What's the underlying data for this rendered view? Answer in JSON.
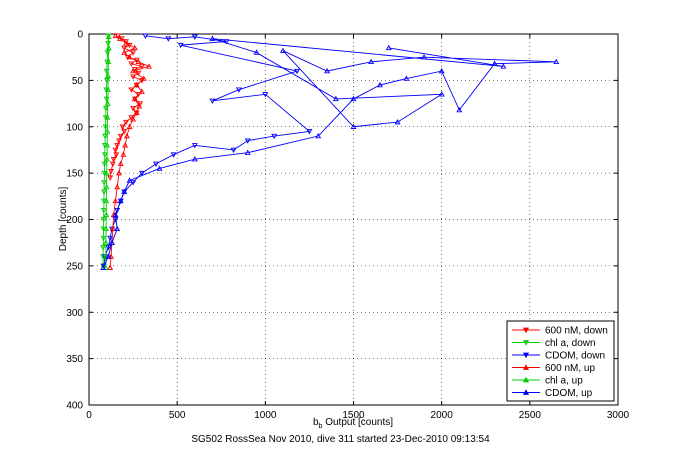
{
  "chart_data": {
    "type": "scatter",
    "caption": "SG502 RossSea Nov 2010, dive 311 started 23-Dec-2010 09:13:54",
    "xlabel_main": "b",
    "xlabel_sub": "b",
    "xlabel_rest": " Output [counts]",
    "ylabel": "Depth [counts]",
    "xlim": [
      0,
      3000
    ],
    "ylim": [
      0,
      400
    ],
    "y_reversed": true,
    "grid": true,
    "legend_position": "bottom-right",
    "xticks": [
      "0",
      "500",
      "1000",
      "1500",
      "2000",
      "2500",
      "3000"
    ],
    "yticks": [
      "0",
      "50",
      "100",
      "150",
      "200",
      "250",
      "300",
      "350",
      "400"
    ],
    "series": [
      {
        "name": "600 nM, down",
        "color": "#ff0000",
        "marker": "triangle-down",
        "points": [
          [
            165,
            2
          ],
          [
            185,
            5
          ],
          [
            210,
            8
          ],
          [
            230,
            12
          ],
          [
            200,
            15
          ],
          [
            250,
            20
          ],
          [
            220,
            25
          ],
          [
            270,
            28
          ],
          [
            240,
            32
          ],
          [
            300,
            35
          ],
          [
            260,
            38
          ],
          [
            280,
            42
          ],
          [
            250,
            46
          ],
          [
            300,
            50
          ],
          [
            270,
            55
          ],
          [
            240,
            60
          ],
          [
            280,
            65
          ],
          [
            260,
            70
          ],
          [
            290,
            75
          ],
          [
            250,
            80
          ],
          [
            270,
            85
          ],
          [
            240,
            90
          ],
          [
            210,
            95
          ],
          [
            190,
            100
          ],
          [
            200,
            105
          ],
          [
            180,
            110
          ],
          [
            170,
            115
          ],
          [
            160,
            120
          ],
          [
            150,
            125
          ],
          [
            155,
            130
          ],
          [
            140,
            135
          ],
          [
            135,
            140
          ],
          [
            125,
            148
          ],
          [
            120,
            155
          ]
        ]
      },
      {
        "name": "chl a, down",
        "color": "#00cc00",
        "marker": "triangle-down",
        "points": [
          [
            110,
            2
          ],
          [
            108,
            10
          ],
          [
            105,
            20
          ],
          [
            103,
            30
          ],
          [
            100,
            40
          ],
          [
            102,
            50
          ],
          [
            98,
            60
          ],
          [
            100,
            70
          ],
          [
            96,
            80
          ],
          [
            95,
            90
          ],
          [
            94,
            100
          ],
          [
            92,
            110
          ],
          [
            90,
            120
          ],
          [
            90,
            130
          ],
          [
            88,
            140
          ],
          [
            88,
            150
          ],
          [
            86,
            160
          ],
          [
            85,
            170
          ],
          [
            85,
            180
          ],
          [
            84,
            190
          ],
          [
            83,
            200
          ],
          [
            82,
            210
          ],
          [
            82,
            220
          ],
          [
            80,
            230
          ],
          [
            80,
            240
          ],
          [
            80,
            250
          ]
        ]
      },
      {
        "name": "CDOM, down",
        "color": "#0000ff",
        "marker": "triangle-down",
        "points": [
          [
            320,
            2
          ],
          [
            450,
            5
          ],
          [
            600,
            3
          ],
          [
            780,
            8
          ],
          [
            520,
            12
          ],
          [
            1180,
            40
          ],
          [
            850,
            60
          ],
          [
            700,
            72
          ],
          [
            1000,
            65
          ],
          [
            1250,
            105
          ],
          [
            1050,
            110
          ],
          [
            900,
            115
          ],
          [
            820,
            125
          ],
          [
            600,
            120
          ],
          [
            480,
            130
          ],
          [
            380,
            140
          ],
          [
            300,
            150
          ],
          [
            250,
            160
          ],
          [
            200,
            170
          ],
          [
            180,
            180
          ],
          [
            160,
            190
          ],
          [
            150,
            200
          ],
          [
            130,
            210
          ],
          [
            120,
            220
          ],
          [
            110,
            230
          ],
          [
            90,
            240
          ],
          [
            85,
            250
          ]
        ]
      },
      {
        "name": "600 nM, up",
        "color": "#ff0000",
        "marker": "triangle-up",
        "points": [
          [
            120,
            252
          ],
          [
            125,
            240
          ],
          [
            130,
            225
          ],
          [
            135,
            210
          ],
          [
            140,
            195
          ],
          [
            150,
            180
          ],
          [
            160,
            165
          ],
          [
            170,
            150
          ],
          [
            180,
            140
          ],
          [
            195,
            130
          ],
          [
            205,
            120
          ],
          [
            215,
            110
          ],
          [
            230,
            100
          ],
          [
            250,
            92
          ],
          [
            270,
            85
          ],
          [
            285,
            78
          ],
          [
            260,
            70
          ],
          [
            300,
            62
          ],
          [
            270,
            55
          ],
          [
            310,
            48
          ],
          [
            250,
            40
          ],
          [
            340,
            35
          ],
          [
            280,
            30
          ],
          [
            230,
            25
          ],
          [
            200,
            20
          ],
          [
            260,
            15
          ],
          [
            210,
            10
          ],
          [
            175,
            5
          ],
          [
            150,
            2
          ]
        ]
      },
      {
        "name": "chl a, up",
        "color": "#00cc00",
        "marker": "triangle-up",
        "points": [
          [
            95,
            252
          ],
          [
            95,
            240
          ],
          [
            96,
            225
          ],
          [
            97,
            210
          ],
          [
            98,
            195
          ],
          [
            98,
            180
          ],
          [
            100,
            165
          ],
          [
            100,
            150
          ],
          [
            102,
            135
          ],
          [
            103,
            120
          ],
          [
            104,
            105
          ],
          [
            105,
            90
          ],
          [
            106,
            75
          ],
          [
            108,
            60
          ],
          [
            108,
            45
          ],
          [
            110,
            30
          ],
          [
            112,
            15
          ],
          [
            112,
            3
          ]
        ]
      },
      {
        "name": "CDOM, up",
        "color": "#0000ff",
        "marker": "triangle-up",
        "points": [
          [
            80,
            252
          ],
          [
            110,
            240
          ],
          [
            130,
            225
          ],
          [
            160,
            210
          ],
          [
            150,
            195
          ],
          [
            180,
            180
          ],
          [
            200,
            170
          ],
          [
            230,
            158
          ],
          [
            400,
            145
          ],
          [
            600,
            135
          ],
          [
            900,
            128
          ],
          [
            1300,
            110
          ],
          [
            1500,
            70
          ],
          [
            1650,
            55
          ],
          [
            1800,
            48
          ],
          [
            2000,
            40
          ],
          [
            2100,
            82
          ],
          [
            2300,
            32
          ],
          [
            2650,
            30
          ],
          [
            1900,
            25
          ],
          [
            1600,
            30
          ],
          [
            1350,
            40
          ],
          [
            1100,
            18
          ],
          [
            1500,
            100
          ],
          [
            1750,
            95
          ],
          [
            2000,
            65
          ],
          [
            1400,
            70
          ],
          [
            950,
            20
          ],
          [
            700,
            5
          ],
          [
            2350,
            35
          ],
          [
            1700,
            15
          ]
        ]
      }
    ]
  }
}
